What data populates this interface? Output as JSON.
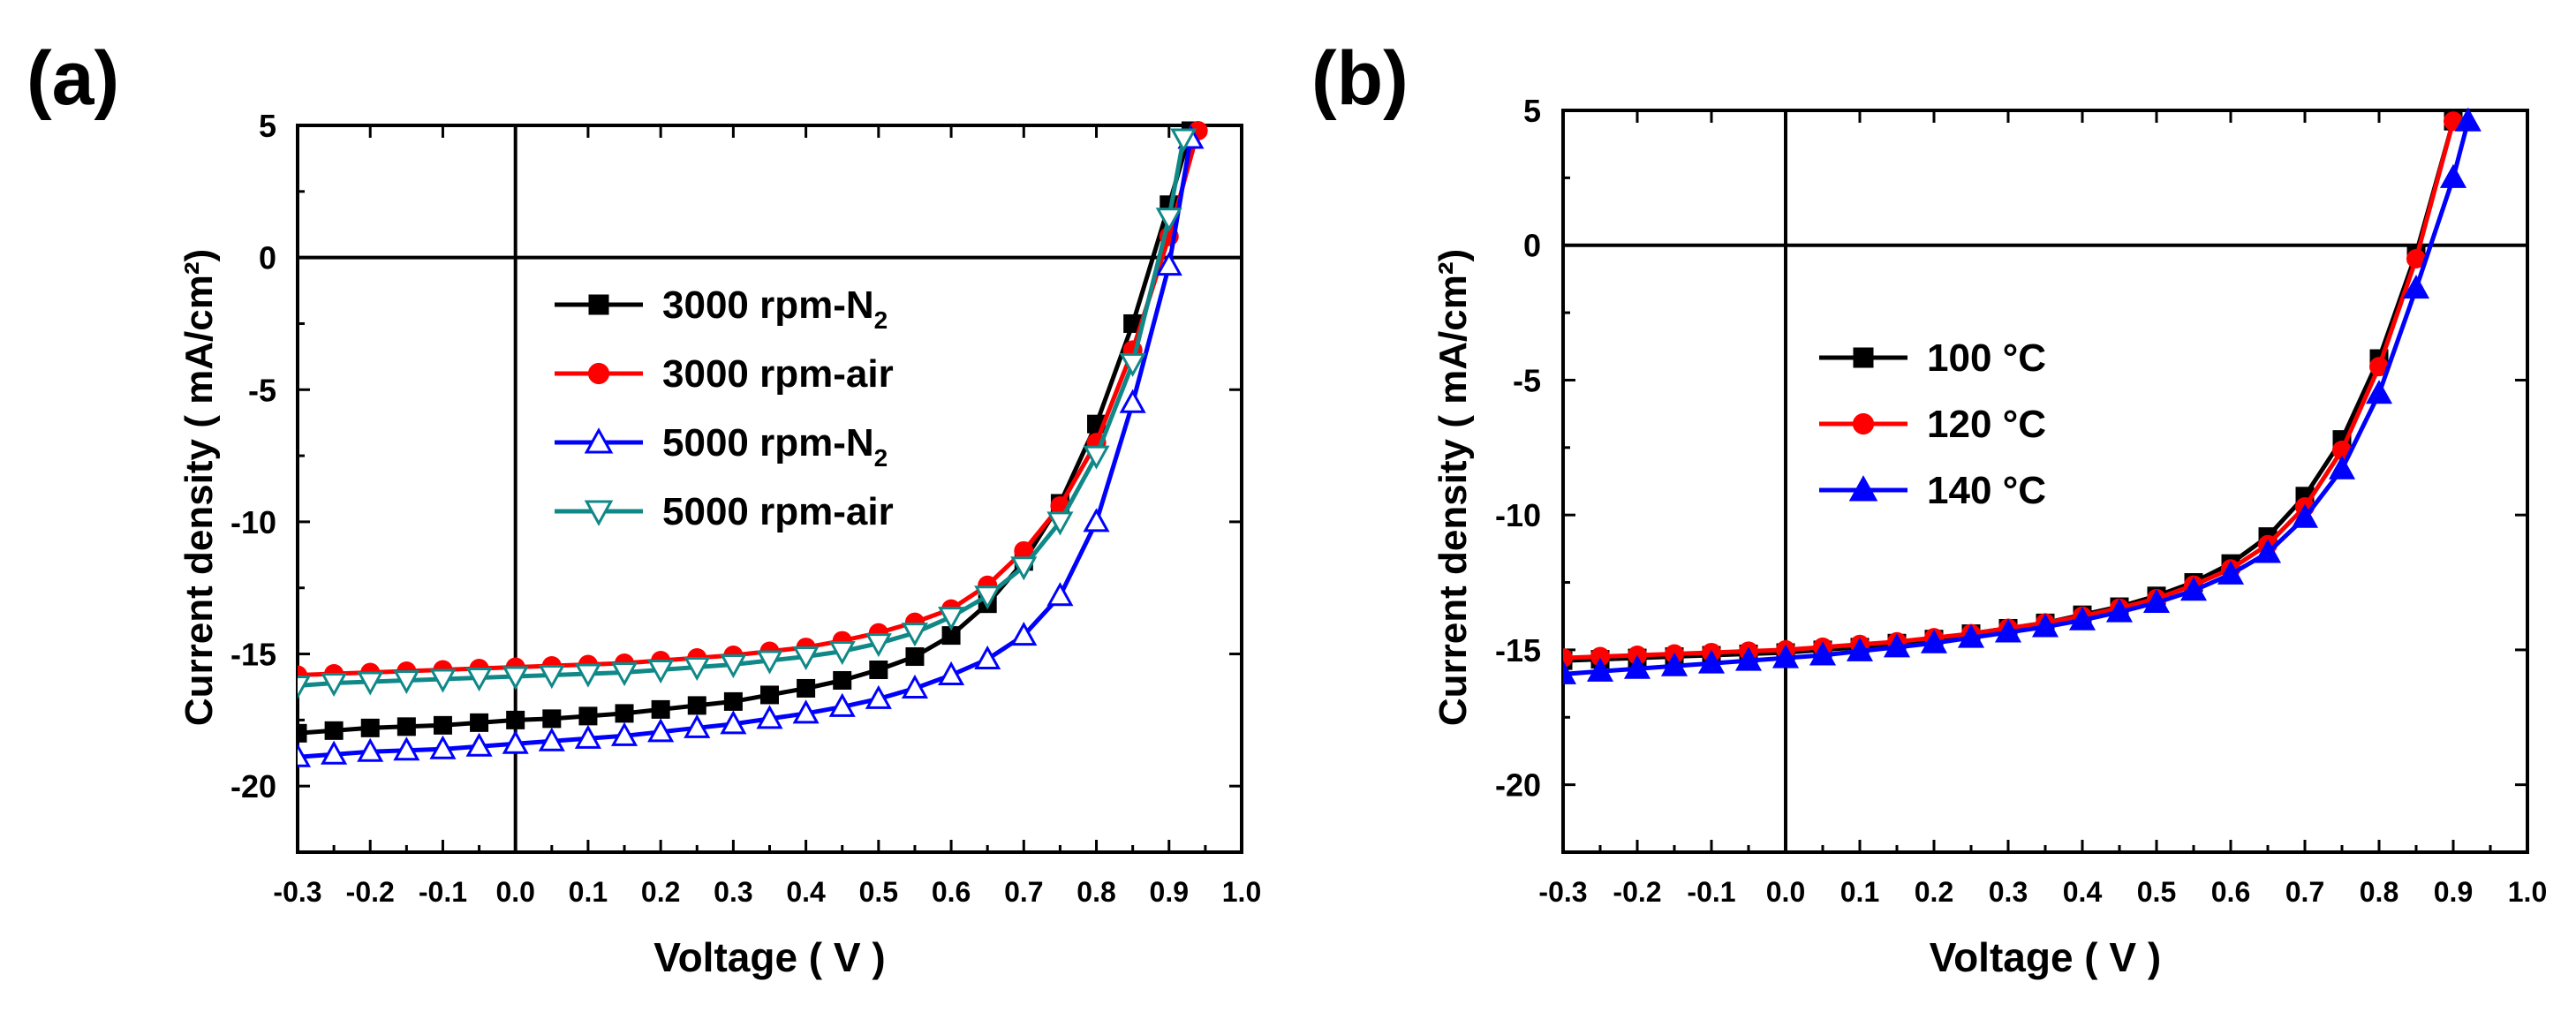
{
  "chart_data": [
    {
      "panel_label": "(a)",
      "type": "line",
      "xlabel": "Voltage ( V )",
      "ylabel": "Current density ( mA/cm²)",
      "xlim": [
        -0.3,
        1.0
      ],
      "ylim": [
        -22.5,
        5
      ],
      "x_ticks": [
        -0.3,
        -0.2,
        -0.1,
        0.0,
        0.1,
        0.2,
        0.3,
        0.4,
        0.5,
        0.6,
        0.7,
        0.8,
        0.9,
        1.0
      ],
      "x_tick_labels": [
        "-0.3",
        "-0.2",
        "-0.1",
        "0.0",
        "0.1",
        "0.2",
        "0.3",
        "0.4",
        "0.5",
        "0.6",
        "0.7",
        "0.8",
        "0.9",
        "1.0"
      ],
      "y_ticks": [
        5,
        0,
        -5,
        -10,
        -15,
        -20
      ],
      "y_tick_labels": [
        "5",
        "0",
        "-5",
        "-10",
        "-15",
        "-20"
      ],
      "legend_position": "right-center",
      "series": [
        {
          "name": "3000 rpm-N2",
          "legend": {
            "main": "3000 rpm-N",
            "sub": "2"
          },
          "color": "#000000",
          "marker": "square-filled",
          "x": [
            -0.3,
            -0.25,
            -0.2,
            -0.15,
            -0.1,
            -0.05,
            0.0,
            0.05,
            0.1,
            0.15,
            0.2,
            0.25,
            0.3,
            0.35,
            0.4,
            0.45,
            0.5,
            0.55,
            0.6,
            0.65,
            0.7,
            0.75,
            0.8,
            0.85,
            0.9,
            0.93
          ],
          "y": [
            -18.0,
            -17.9,
            -17.8,
            -17.75,
            -17.7,
            -17.6,
            -17.5,
            -17.45,
            -17.35,
            -17.25,
            -17.1,
            -16.95,
            -16.8,
            -16.55,
            -16.3,
            -16.0,
            -15.6,
            -15.1,
            -14.3,
            -13.1,
            -11.5,
            -9.3,
            -6.3,
            -2.5,
            2.0,
            4.8
          ]
        },
        {
          "name": "3000 rpm-air",
          "legend": {
            "main": "3000 rpm-air",
            "sub": ""
          },
          "color": "#ff0000",
          "marker": "circle-filled",
          "x": [
            -0.3,
            -0.25,
            -0.2,
            -0.15,
            -0.1,
            -0.05,
            0.0,
            0.05,
            0.1,
            0.15,
            0.2,
            0.25,
            0.3,
            0.35,
            0.4,
            0.45,
            0.5,
            0.55,
            0.6,
            0.65,
            0.7,
            0.75,
            0.8,
            0.85,
            0.9,
            0.94
          ],
          "y": [
            -15.8,
            -15.75,
            -15.7,
            -15.65,
            -15.6,
            -15.55,
            -15.5,
            -15.45,
            -15.4,
            -15.35,
            -15.25,
            -15.15,
            -15.05,
            -14.9,
            -14.75,
            -14.5,
            -14.2,
            -13.8,
            -13.3,
            -12.4,
            -11.1,
            -9.4,
            -7.0,
            -3.5,
            0.8,
            4.8
          ]
        },
        {
          "name": "5000 rpm-N2",
          "legend": {
            "main": "5000 rpm-N",
            "sub": "2"
          },
          "color": "#0000ff",
          "marker": "triangle-up-open",
          "x": [
            -0.3,
            -0.25,
            -0.2,
            -0.15,
            -0.1,
            -0.05,
            0.0,
            0.05,
            0.1,
            0.15,
            0.2,
            0.25,
            0.3,
            0.35,
            0.4,
            0.45,
            0.5,
            0.55,
            0.6,
            0.65,
            0.7,
            0.75,
            0.8,
            0.85,
            0.9,
            0.93
          ],
          "y": [
            -18.9,
            -18.8,
            -18.7,
            -18.65,
            -18.6,
            -18.5,
            -18.4,
            -18.3,
            -18.2,
            -18.1,
            -17.95,
            -17.8,
            -17.65,
            -17.45,
            -17.25,
            -17.0,
            -16.7,
            -16.3,
            -15.8,
            -15.2,
            -14.3,
            -12.8,
            -10.0,
            -5.5,
            -0.3,
            4.5
          ]
        },
        {
          "name": "5000 rpm-air",
          "legend": {
            "main": "5000 rpm-air",
            "sub": ""
          },
          "color": "#118888",
          "marker": "triangle-down-open",
          "x": [
            -0.3,
            -0.25,
            -0.2,
            -0.15,
            -0.1,
            -0.05,
            0.0,
            0.05,
            0.1,
            0.15,
            0.2,
            0.25,
            0.3,
            0.35,
            0.4,
            0.45,
            0.5,
            0.55,
            0.6,
            0.65,
            0.7,
            0.75,
            0.8,
            0.85,
            0.9,
            0.92
          ],
          "y": [
            -16.2,
            -16.1,
            -16.05,
            -16.0,
            -15.95,
            -15.9,
            -15.85,
            -15.8,
            -15.75,
            -15.7,
            -15.6,
            -15.5,
            -15.4,
            -15.25,
            -15.1,
            -14.9,
            -14.6,
            -14.2,
            -13.6,
            -12.8,
            -11.7,
            -10.0,
            -7.5,
            -4.0,
            1.5,
            4.5
          ]
        }
      ]
    },
    {
      "panel_label": "(b)",
      "type": "line",
      "xlabel": "Voltage ( V )",
      "ylabel": "Current density ( mA/cm²)",
      "xlim": [
        -0.3,
        1.0
      ],
      "ylim": [
        -22.5,
        5
      ],
      "x_ticks": [
        -0.3,
        -0.2,
        -0.1,
        0.0,
        0.1,
        0.2,
        0.3,
        0.4,
        0.5,
        0.6,
        0.7,
        0.8,
        0.9,
        1.0
      ],
      "x_tick_labels": [
        "-0.3",
        "-0.2",
        "-0.1",
        "0.0",
        "0.1",
        "0.2",
        "0.3",
        "0.4",
        "0.5",
        "0.6",
        "0.7",
        "0.8",
        "0.9",
        "1.0"
      ],
      "y_ticks": [
        5,
        0,
        -5,
        -10,
        -15,
        -20
      ],
      "y_tick_labels": [
        "5",
        "0",
        "-5",
        "-10",
        "-15",
        "-20"
      ],
      "legend_position": "left-center",
      "series": [
        {
          "name": "100 °C",
          "legend": {
            "main": "100 °C",
            "sub": ""
          },
          "color": "#000000",
          "marker": "square-filled",
          "x": [
            -0.3,
            -0.25,
            -0.2,
            -0.15,
            -0.1,
            -0.05,
            0.0,
            0.05,
            0.1,
            0.15,
            0.2,
            0.25,
            0.3,
            0.35,
            0.4,
            0.45,
            0.5,
            0.55,
            0.6,
            0.65,
            0.7,
            0.75,
            0.8,
            0.85,
            0.9
          ],
          "y": [
            -15.4,
            -15.35,
            -15.3,
            -15.25,
            -15.2,
            -15.15,
            -15.1,
            -15.0,
            -14.9,
            -14.75,
            -14.6,
            -14.4,
            -14.2,
            -14.0,
            -13.7,
            -13.4,
            -13.0,
            -12.5,
            -11.8,
            -10.8,
            -9.3,
            -7.2,
            -4.2,
            -0.3,
            4.6
          ]
        },
        {
          "name": "120 °C",
          "legend": {
            "main": "120 °C",
            "sub": ""
          },
          "color": "#ff0000",
          "marker": "circle-filled",
          "x": [
            -0.3,
            -0.25,
            -0.2,
            -0.15,
            -0.1,
            -0.05,
            0.0,
            0.05,
            0.1,
            0.15,
            0.2,
            0.25,
            0.3,
            0.35,
            0.4,
            0.45,
            0.5,
            0.55,
            0.6,
            0.65,
            0.7,
            0.75,
            0.8,
            0.85,
            0.9
          ],
          "y": [
            -15.3,
            -15.25,
            -15.2,
            -15.15,
            -15.1,
            -15.05,
            -15.0,
            -14.9,
            -14.8,
            -14.7,
            -14.55,
            -14.4,
            -14.2,
            -14.0,
            -13.75,
            -13.45,
            -13.1,
            -12.6,
            -12.0,
            -11.1,
            -9.7,
            -7.6,
            -4.5,
            -0.5,
            4.6
          ]
        },
        {
          "name": "140 °C",
          "legend": {
            "main": "140 °C",
            "sub": ""
          },
          "color": "#0000ff",
          "marker": "triangle-up-filled",
          "x": [
            -0.3,
            -0.25,
            -0.2,
            -0.15,
            -0.1,
            -0.05,
            0.0,
            0.05,
            0.1,
            0.15,
            0.2,
            0.25,
            0.3,
            0.35,
            0.4,
            0.45,
            0.5,
            0.55,
            0.6,
            0.65,
            0.7,
            0.75,
            0.8,
            0.85,
            0.9,
            0.92
          ],
          "y": [
            -15.9,
            -15.8,
            -15.7,
            -15.6,
            -15.5,
            -15.4,
            -15.3,
            -15.2,
            -15.05,
            -14.9,
            -14.75,
            -14.55,
            -14.35,
            -14.15,
            -13.9,
            -13.6,
            -13.25,
            -12.8,
            -12.2,
            -11.4,
            -10.1,
            -8.3,
            -5.5,
            -1.6,
            2.5,
            4.6
          ]
        }
      ]
    }
  ]
}
